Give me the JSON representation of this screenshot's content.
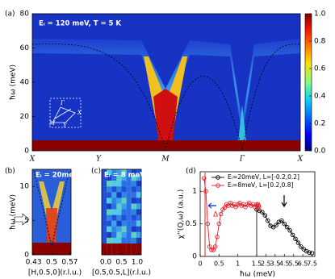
{
  "chart_data": [
    {
      "type": "heatmap",
      "panel": "(a)",
      "annotation": "Eᵢ = 120 meV, T = 5 K",
      "ylabel": "ħω (meV)",
      "categories": [
        "X",
        "Y",
        "M",
        "Γ",
        "X"
      ],
      "ylim": [
        0,
        80
      ],
      "yticks": [
        0,
        20,
        40,
        60,
        80
      ],
      "colorbar": {
        "lim": [
          0,
          1
        ],
        "ticks": [
          {
            "value": 0,
            "label": "0.0"
          },
          {
            "value": 0.2,
            "label": "0.2"
          },
          {
            "value": 0.4,
            "label": "0.4"
          },
          {
            "value": 0.6,
            "label": "0.6"
          },
          {
            "value": 0.8,
            "label": "0.8"
          },
          {
            "value": 1,
            "label": "1.0"
          }
        ]
      },
      "inset_labels": [
        "Γ",
        "X",
        "M",
        "Y"
      ]
    },
    {
      "type": "heatmap",
      "panel": "(b)",
      "annotation": "Eᵢ = 20meV",
      "ylabel": "ħω (meV)",
      "xlabel": "[H,0.5,0](r.l.u.)",
      "xlim": [
        0.425,
        0.575
      ],
      "xticks": [
        0.43,
        0.5,
        0.57
      ],
      "ylim": [
        0,
        12.5
      ],
      "yticks": [
        0,
        5,
        10
      ]
    },
    {
      "type": "heatmap",
      "panel": "(c)",
      "annotation": "Eᵢ = 8 meV",
      "xlabel": "[0.5,0.5,L](r.l.u.)",
      "xlim": [
        -0.13,
        1.13
      ],
      "xticks": [
        {
          "value": 0,
          "label": "0.0"
        },
        {
          "value": 0.5,
          "label": "0.5"
        },
        {
          "value": 1,
          "label": "1.0"
        }
      ]
    },
    {
      "type": "line",
      "panel": "(d)",
      "annotation": "Δ",
      "xlabel": "ħω (meV)",
      "ylabel": "χ''(Q,ω) (a.u.)",
      "xlim": [
        0,
        7.8
      ],
      "xticks": [
        0,
        0.5,
        1,
        1.5,
        2.5,
        3.5,
        4.5,
        5.5,
        6.5,
        7.5
      ],
      "ylim": [
        0,
        1.3
      ],
      "yticks": [
        0,
        0.5,
        1
      ],
      "legend": "upper right",
      "series": [
        {
          "name": "Eᵢ=20meV, L=[-0.2,0.2]",
          "color": "#000000",
          "x": [
            1.5,
            1.8,
            2.1,
            2.4,
            2.7,
            3.0,
            3.3,
            3.6,
            3.9,
            4.2,
            4.5,
            4.8,
            5.1,
            5.4,
            5.7,
            6.0,
            6.3,
            6.6,
            6.9,
            7.2,
            7.5
          ],
          "values": [
            0.72,
            0.7,
            0.68,
            0.63,
            0.55,
            0.47,
            0.45,
            0.48,
            0.53,
            0.55,
            0.5,
            0.45,
            0.4,
            0.33,
            0.27,
            0.21,
            0.15,
            0.11,
            0.08,
            0.06,
            0.05
          ]
        },
        {
          "name": "Eᵢ=8meV, L=[0.2,0.8]",
          "color": "#e8202a",
          "x": [
            0.1,
            0.15,
            0.2,
            0.25,
            0.3,
            0.35,
            0.4,
            0.45,
            0.5,
            0.55,
            0.6,
            0.65,
            0.7,
            0.75,
            0.8,
            0.85,
            0.9,
            0.95,
            1.0,
            1.05,
            1.1,
            1.15,
            1.2,
            1.25,
            1.3,
            1.35,
            1.4,
            1.45,
            1.5,
            1.55,
            1.6,
            1.65,
            1.7,
            1.75
          ],
          "values": [
            1.2,
            1.0,
            0.5,
            0.15,
            0.1,
            0.1,
            0.15,
            0.3,
            0.5,
            0.65,
            0.72,
            0.75,
            0.8,
            0.78,
            0.82,
            0.78,
            0.8,
            0.76,
            0.8,
            0.82,
            0.78,
            0.8,
            0.76,
            0.8,
            0.82,
            0.78,
            0.8,
            0.76,
            0.8,
            0.78,
            0.74,
            0.8,
            0.78,
            0.76
          ]
        }
      ]
    }
  ]
}
